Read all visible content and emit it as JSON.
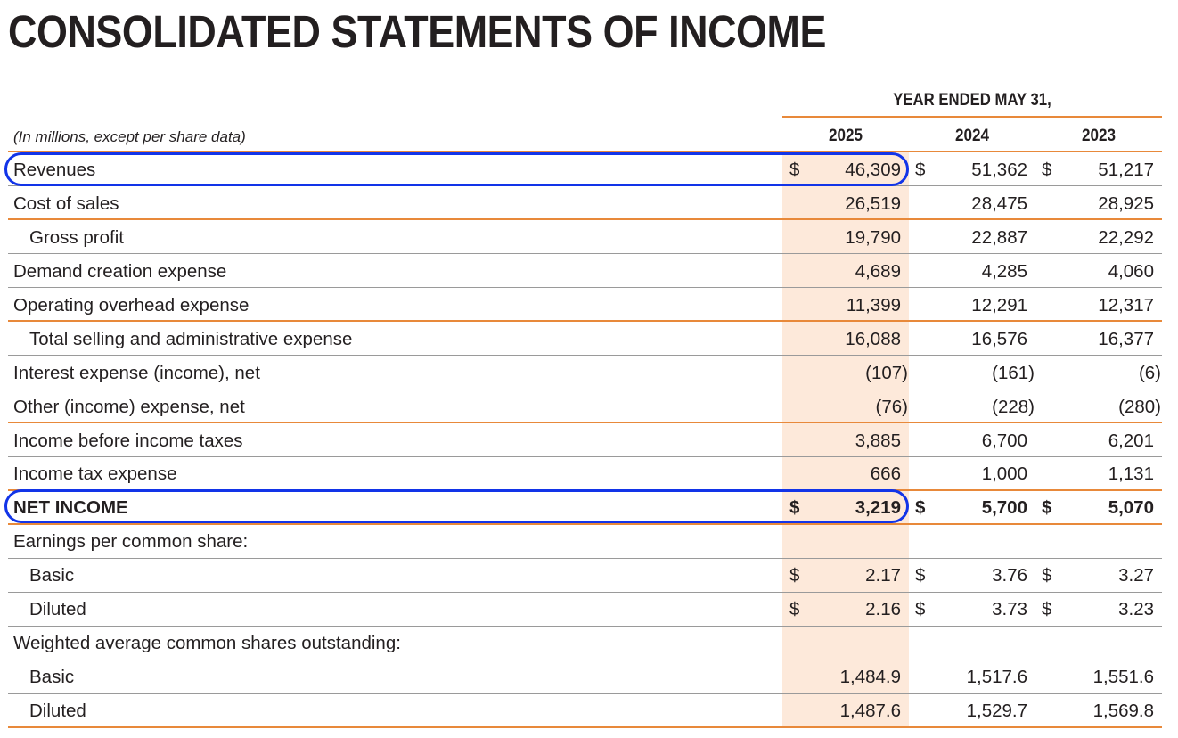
{
  "title": "CONSOLIDATED STATEMENTS OF INCOME",
  "period_header": "YEAR ENDED MAY 31,",
  "caption": "(In millions, except per share data)",
  "years": [
    "2025",
    "2024",
    "2023"
  ],
  "colors": {
    "accent_rule": "#e8893a",
    "highlight_band": "#fde9da",
    "annotation": "#1234e8"
  },
  "rows": [
    {
      "label": "Revenues",
      "values": [
        "46,309",
        "51,362",
        "51,217"
      ],
      "currency": [
        "$",
        "$",
        "$"
      ]
    },
    {
      "label": "Cost of sales",
      "values": [
        "26,519",
        "28,475",
        "28,925"
      ]
    },
    {
      "label": "Gross profit",
      "values": [
        "19,790",
        "22,887",
        "22,292"
      ]
    },
    {
      "label": "Demand creation expense",
      "values": [
        "4,689",
        "4,285",
        "4,060"
      ]
    },
    {
      "label": "Operating overhead expense",
      "values": [
        "11,399",
        "12,291",
        "12,317"
      ]
    },
    {
      "label": "Total selling and administrative expense",
      "values": [
        "16,088",
        "16,576",
        "16,377"
      ]
    },
    {
      "label": "Interest expense (income), net",
      "values": [
        "(107)",
        "(161)",
        "(6)"
      ]
    },
    {
      "label": "Other (income) expense, net",
      "values": [
        "(76)",
        "(228)",
        "(280)"
      ]
    },
    {
      "label": "Income before income taxes",
      "values": [
        "3,885",
        "6,700",
        "6,201"
      ]
    },
    {
      "label": "Income tax expense",
      "values": [
        "666",
        "1,000",
        "1,131"
      ]
    },
    {
      "label": "NET INCOME",
      "values": [
        "3,219",
        "5,700",
        "5,070"
      ],
      "currency": [
        "$",
        "$",
        "$"
      ]
    },
    {
      "label": "Earnings per common share:"
    },
    {
      "label": "Basic",
      "values": [
        "2.17",
        "3.76",
        "3.27"
      ],
      "currency": [
        "$",
        "$",
        "$"
      ]
    },
    {
      "label": "Diluted",
      "values": [
        "2.16",
        "3.73",
        "3.23"
      ],
      "currency": [
        "$",
        "$",
        "$"
      ]
    },
    {
      "label": "Weighted average common shares outstanding:"
    },
    {
      "label": "Basic",
      "values": [
        "1,484.9",
        "1,517.6",
        "1,551.6"
      ]
    },
    {
      "label": "Diluted",
      "values": [
        "1,487.6",
        "1,529.7",
        "1,569.8"
      ]
    }
  ]
}
